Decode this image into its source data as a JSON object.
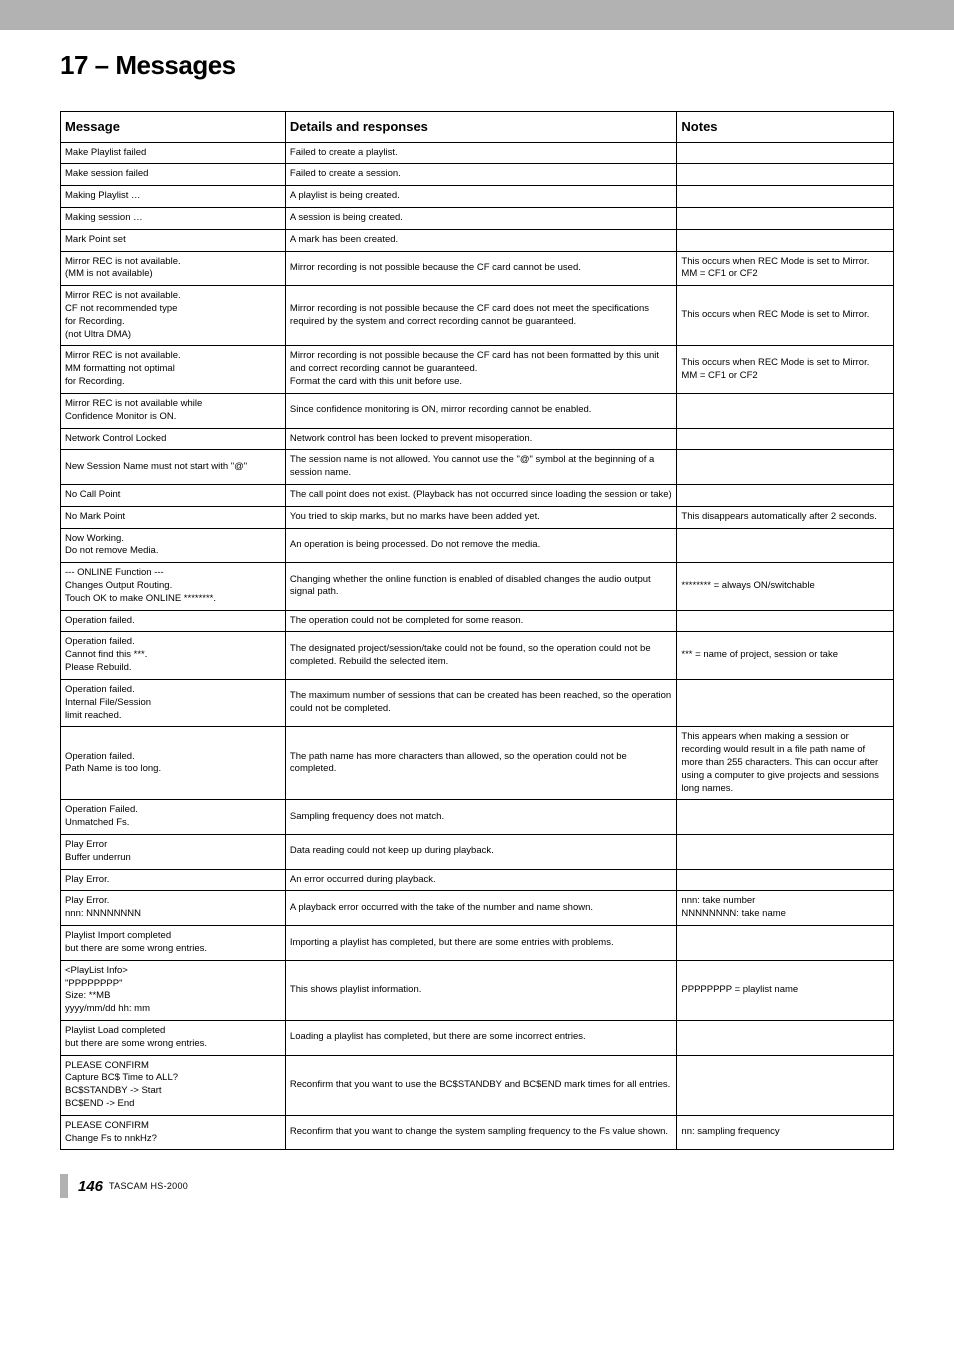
{
  "page": {
    "chapter_title": "17 – Messages",
    "page_number": "146",
    "model": "TASCAM  HS-2000"
  },
  "headers": {
    "message": "Message",
    "details": "Details and responses",
    "notes": "Notes"
  },
  "rows": [
    {
      "m": "Make Playlist failed",
      "d": "Failed to create a playlist.",
      "n": ""
    },
    {
      "m": "Make session failed",
      "d": "Failed to create a session.",
      "n": ""
    },
    {
      "m": "Making Playlist …",
      "d": "A playlist is being created.",
      "n": ""
    },
    {
      "m": "Making session …",
      "d": "A session is being created.",
      "n": ""
    },
    {
      "m": "Mark Point set",
      "d": "A mark has been created.",
      "n": ""
    },
    {
      "m": "Mirror REC is not available.\n(MM is not available)",
      "d": "Mirror recording is not possible because the CF card cannot be used.",
      "n": "This occurs when REC Mode is set to Mirror.\nMM = CF1 or CF2"
    },
    {
      "m": "Mirror REC is not available.\nCF not recommended type\nfor Recording.\n(not Ultra DMA)",
      "d": "Mirror recording is not possible because the CF card does not meet the specifications required by the system and correct recording cannot be guaranteed.",
      "n": "This occurs when REC Mode is set to Mirror."
    },
    {
      "m": "Mirror REC is not available.\nMM formatting not optimal\nfor Recording.",
      "d": "Mirror recording is not possible because the CF card has not been formatted by this unit and correct recording cannot be guaranteed.\nFormat the card with this unit before use.",
      "n": "This occurs when REC Mode is set to Mirror.\nMM = CF1 or CF2"
    },
    {
      "m": "Mirror REC is not available while\nConfidence Monitor is ON.",
      "d": "Since confidence monitoring is ON, mirror recording cannot be enabled.",
      "n": ""
    },
    {
      "m": "Network Control Locked",
      "d": "Network control has been locked to prevent misoperation.",
      "n": ""
    },
    {
      "m": "New Session Name must not start with \"@\"",
      "d": "The session name is not allowed. You cannot use the \"@\" symbol at the beginning of a session name.",
      "n": ""
    },
    {
      "m": "No Call Point",
      "d": "The call point does not exist. (Playback has not occurred since loading the session or take)",
      "n": ""
    },
    {
      "m": "No Mark Point",
      "d": "You tried to skip marks, but no marks have been added yet.",
      "n": "This disappears automatically after 2 seconds."
    },
    {
      "m": "Now Working.\nDo not remove Media.",
      "d": "An operation is being processed. Do not remove the media.",
      "n": ""
    },
    {
      "m": "--- ONLINE Function ---\nChanges Output Routing.\nTouch OK to make ONLINE ********.",
      "d": "Changing whether the online function is enabled of disabled changes the audio output signal path.",
      "n": "******** = always ON/switchable"
    },
    {
      "m": "Operation failed.",
      "d": "The operation could not be completed for some reason.",
      "n": ""
    },
    {
      "m": "Operation failed.\nCannot find this ***.\nPlease Rebuild.",
      "d": "The designated project/session/take could not be found, so the operation could not be completed. Rebuild the selected item.",
      "n": "*** = name of project, session or take"
    },
    {
      "m": "Operation failed.\nInternal File/Session\nlimit reached.",
      "d": "The maximum number of sessions that can be created has been reached, so the operation could not be completed.",
      "n": ""
    },
    {
      "m": "Operation failed.\nPath Name is too long.",
      "d": "The path name has more characters than allowed, so the operation could not be completed.",
      "n": "This appears when making a session or recording would result in a file path name of more than 255 characters. This can occur after using a computer to give projects and sessions long names."
    },
    {
      "m": "Operation Failed.\nUnmatched Fs.",
      "d": "Sampling frequency does not match.",
      "n": ""
    },
    {
      "m": "Play Error\nBuffer underrun",
      "d": "Data reading could not keep up during playback.",
      "n": ""
    },
    {
      "m": "Play Error.",
      "d": "An error occurred during playback.",
      "n": ""
    },
    {
      "m": "Play Error.\nnnn: NNNNNNNN",
      "d": "A playback error occurred with the take of the number and name shown.",
      "n": "nnn: take number\nNNNNNNNN: take name"
    },
    {
      "m": "Playlist Import completed\nbut there are some wrong entries.",
      "d": "Importing a playlist has completed, but there are some entries with problems.",
      "n": ""
    },
    {
      "m": "<PlayList Info>\n\"PPPPPPPP\"\nSize: **MB\nyyyy/mm/dd hh: mm",
      "d": "This shows playlist information.",
      "n": "PPPPPPPP = playlist name"
    },
    {
      "m": "Playlist Load completed\nbut there are some wrong entries.",
      "d": "Loading a playlist has completed, but there are some incorrect entries.",
      "n": ""
    },
    {
      "m": "PLEASE CONFIRM\nCapture BC$ Time to ALL?\nBC$STANDBY -> Start\nBC$END          -> End",
      "d": "Reconfirm that you want to use the BC$STANDBY and BC$END mark times for all entries.",
      "n": ""
    },
    {
      "m": "PLEASE CONFIRM\nChange Fs to nnkHz?",
      "d": "Reconfirm that you want to change the system sampling frequency to the Fs value shown.",
      "n": "nn: sampling frequency"
    }
  ]
}
